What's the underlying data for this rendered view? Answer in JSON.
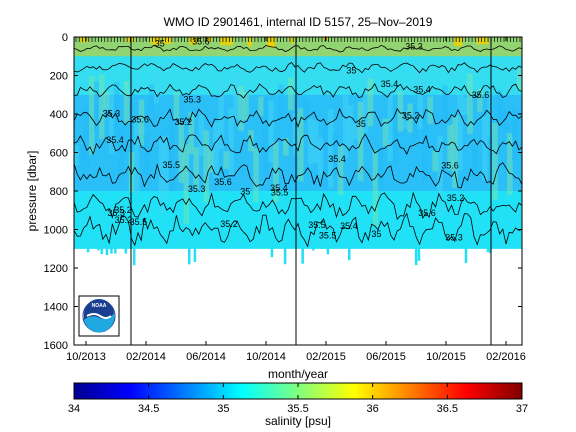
{
  "chart_data": {
    "type": "heatmap",
    "title": "WMO ID 2901461, internal ID 5157, 25–Nov–2019",
    "xlabel": "month/year",
    "ylabel": "pressure [dbar]",
    "colorbar_label": "salinity [psu]",
    "x_ticks": [
      "10/2013",
      "02/2014",
      "06/2014",
      "10/2014",
      "02/2015",
      "06/2015",
      "10/2015",
      "02/2016"
    ],
    "y_ticks": [
      "0",
      "200",
      "400",
      "600",
      "800",
      "1000",
      "1200",
      "1400",
      "1600"
    ],
    "ylim": [
      0,
      1600
    ],
    "y_reversed": true,
    "colorbar_ticks": [
      "34",
      "34.5",
      "35",
      "35.5",
      "36",
      "36.5",
      "37"
    ],
    "clim": [
      34,
      37
    ],
    "colormap": "jet",
    "data_extent": {
      "depth_top_dbar": 0,
      "depth_bottom_dbar_typical": 1100,
      "depth_bottom_dbar_deepest": 1190
    },
    "typical_salinity_psu": {
      "surface_0_100": 35.8,
      "upper_100_300": 35.4,
      "mid_300_800": 35.2,
      "deep_800_1150": 35.0
    },
    "vertical_markers_x": [
      "01/2014",
      "12/2014",
      "01/2016"
    ],
    "contour_labels": [
      "35.2",
      "35.4",
      "35.3",
      "35.6",
      "35",
      "35.5"
    ],
    "logo": "NOAA"
  },
  "colors": {
    "surface": "#9ad36a",
    "upper": "#37dcf0",
    "mid": "#2bbdf7",
    "deep": "#21e0f6",
    "accent": "#f0d000"
  }
}
